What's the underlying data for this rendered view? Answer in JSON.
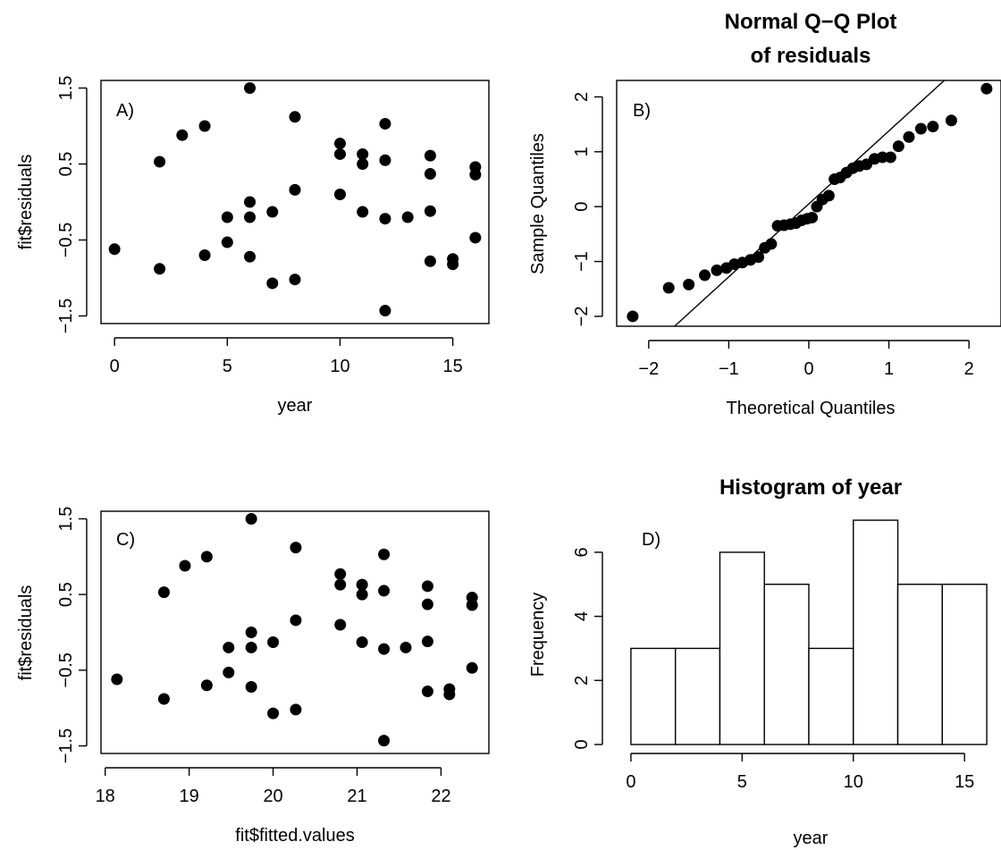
{
  "chart_data": [
    {
      "id": "A",
      "type": "scatter",
      "panel_label": "A)",
      "title": "",
      "xlabel": "year",
      "ylabel": "fit$residuals",
      "xlim": [
        -0.6,
        16.6
      ],
      "ylim": [
        -1.6,
        1.6
      ],
      "xticks": [
        0,
        5,
        10,
        15
      ],
      "yticks": [
        -1.5,
        -0.5,
        0.5,
        1.5
      ],
      "xtick_labels": [
        "0",
        "5",
        "10",
        "15"
      ],
      "ytick_labels": [
        "−1.5",
        "−0.5",
        "0.5",
        "1.5"
      ],
      "points": [
        [
          0,
          -0.62
        ],
        [
          2,
          0.53
        ],
        [
          2,
          -0.88
        ],
        [
          3,
          0.88
        ],
        [
          4,
          1.0
        ],
        [
          4,
          -0.7
        ],
        [
          5,
          -0.2
        ],
        [
          5,
          -0.53
        ],
        [
          6,
          1.5
        ],
        [
          6,
          0.0
        ],
        [
          6,
          -0.2
        ],
        [
          6,
          -0.72
        ],
        [
          7,
          -0.13
        ],
        [
          7,
          -1.07
        ],
        [
          8,
          1.12
        ],
        [
          8,
          0.16
        ],
        [
          8,
          -1.02
        ],
        [
          10,
          0.77
        ],
        [
          10,
          0.63
        ],
        [
          10,
          0.1
        ],
        [
          11,
          0.63
        ],
        [
          11,
          0.5
        ],
        [
          11,
          -0.13
        ],
        [
          12,
          1.03
        ],
        [
          12,
          0.55
        ],
        [
          12,
          -0.22
        ],
        [
          12,
          -1.43
        ],
        [
          13,
          -0.2
        ],
        [
          14,
          0.61
        ],
        [
          14,
          0.37
        ],
        [
          14,
          -0.12
        ],
        [
          14,
          -0.78
        ],
        [
          15,
          -0.75
        ],
        [
          15,
          -0.82
        ],
        [
          16,
          0.46
        ],
        [
          16,
          0.36
        ],
        [
          16,
          -0.47
        ]
      ]
    },
    {
      "id": "B",
      "type": "scatter",
      "panel_label": "B)",
      "title": "Normal Q−Q Plot\nof residuals",
      "xlabel": "Theoretical Quantiles",
      "ylabel": "Sample Quantiles",
      "xlim": [
        -2.4,
        2.4
      ],
      "ylim": [
        -2.18,
        2.3
      ],
      "xticks": [
        -2,
        -1,
        0,
        1,
        2
      ],
      "yticks": [
        -2,
        -1,
        0,
        1,
        2
      ],
      "xtick_labels": [
        "−2",
        "−1",
        "0",
        "1",
        "2"
      ],
      "ytick_labels": [
        "−2",
        "−1",
        "0",
        "1",
        "2"
      ],
      "reference_line": {
        "intercept": 0.05,
        "slope": 1.33
      },
      "points": [
        [
          -2.2,
          -2.0
        ],
        [
          -1.75,
          -1.48
        ],
        [
          -1.5,
          -1.42
        ],
        [
          -1.3,
          -1.25
        ],
        [
          -1.15,
          -1.16
        ],
        [
          -1.03,
          -1.12
        ],
        [
          -0.93,
          -1.05
        ],
        [
          -0.83,
          -1.02
        ],
        [
          -0.73,
          -0.97
        ],
        [
          -0.63,
          -0.92
        ],
        [
          -0.55,
          -0.75
        ],
        [
          -0.47,
          -0.68
        ],
        [
          -0.39,
          -0.35
        ],
        [
          -0.31,
          -0.34
        ],
        [
          -0.23,
          -0.32
        ],
        [
          -0.16,
          -0.3
        ],
        [
          -0.09,
          -0.25
        ],
        [
          -0.02,
          -0.22
        ],
        [
          0.04,
          -0.2
        ],
        [
          0.1,
          0.0
        ],
        [
          0.17,
          0.13
        ],
        [
          0.25,
          0.2
        ],
        [
          0.32,
          0.5
        ],
        [
          0.39,
          0.53
        ],
        [
          0.47,
          0.62
        ],
        [
          0.55,
          0.7
        ],
        [
          0.63,
          0.74
        ],
        [
          0.72,
          0.77
        ],
        [
          0.82,
          0.87
        ],
        [
          0.92,
          0.9
        ],
        [
          1.02,
          0.9
        ],
        [
          1.12,
          1.1
        ],
        [
          1.25,
          1.27
        ],
        [
          1.4,
          1.42
        ],
        [
          1.55,
          1.46
        ],
        [
          1.78,
          1.57
        ],
        [
          2.22,
          2.15
        ]
      ]
    },
    {
      "id": "C",
      "type": "scatter",
      "panel_label": "C)",
      "title": "",
      "xlabel": "fit$fitted.values",
      "ylabel": "fit$residuals",
      "xlim": [
        17.95,
        22.57
      ],
      "ylim": [
        -1.6,
        1.6
      ],
      "xticks": [
        18,
        19,
        20,
        21,
        22
      ],
      "yticks": [
        -1.5,
        -0.5,
        0.5,
        1.5
      ],
      "xtick_labels": [
        "18",
        "19",
        "20",
        "21",
        "22"
      ],
      "ytick_labels": [
        "−1.5",
        "−0.5",
        "0.5",
        "1.5"
      ],
      "points": [
        [
          18.14,
          -0.62
        ],
        [
          18.7,
          0.53
        ],
        [
          18.7,
          -0.88
        ],
        [
          18.95,
          0.88
        ],
        [
          19.21,
          1.0
        ],
        [
          19.21,
          -0.7
        ],
        [
          19.47,
          -0.2
        ],
        [
          19.47,
          -0.53
        ],
        [
          19.74,
          1.5
        ],
        [
          19.74,
          0.0
        ],
        [
          19.74,
          -0.2
        ],
        [
          19.74,
          -0.72
        ],
        [
          20.0,
          -0.13
        ],
        [
          20.0,
          -1.07
        ],
        [
          20.27,
          1.12
        ],
        [
          20.27,
          0.16
        ],
        [
          20.27,
          -1.02
        ],
        [
          20.8,
          0.77
        ],
        [
          20.8,
          0.63
        ],
        [
          20.8,
          0.1
        ],
        [
          21.06,
          0.63
        ],
        [
          21.06,
          0.5
        ],
        [
          21.06,
          -0.13
        ],
        [
          21.32,
          1.03
        ],
        [
          21.32,
          0.55
        ],
        [
          21.32,
          -0.22
        ],
        [
          21.32,
          -1.43
        ],
        [
          21.58,
          -0.2
        ],
        [
          21.84,
          0.61
        ],
        [
          21.84,
          0.37
        ],
        [
          21.84,
          -0.12
        ],
        [
          21.84,
          -0.78
        ],
        [
          22.1,
          -0.75
        ],
        [
          22.1,
          -0.82
        ],
        [
          22.37,
          0.46
        ],
        [
          22.37,
          0.36
        ],
        [
          22.37,
          -0.47
        ]
      ]
    },
    {
      "id": "D",
      "type": "bar",
      "panel_label": "D)",
      "title": "Histogram of year",
      "xlabel": "year",
      "ylabel": "Frequency",
      "xlim": [
        -0.64,
        16.64
      ],
      "ylim": [
        -0.28,
        7.28
      ],
      "xticks": [
        0,
        5,
        10,
        15
      ],
      "yticks": [
        0,
        2,
        4,
        6
      ],
      "xtick_labels": [
        "0",
        "5",
        "10",
        "15"
      ],
      "ytick_labels": [
        "0",
        "2",
        "4",
        "6"
      ],
      "bins": [
        {
          "from": 0,
          "to": 2,
          "count": 3
        },
        {
          "from": 2,
          "to": 4,
          "count": 3
        },
        {
          "from": 4,
          "to": 6,
          "count": 6
        },
        {
          "from": 6,
          "to": 8,
          "count": 5
        },
        {
          "from": 8,
          "to": 10,
          "count": 3
        },
        {
          "from": 10,
          "to": 12,
          "count": 7
        },
        {
          "from": 12,
          "to": 14,
          "count": 5
        },
        {
          "from": 14,
          "to": 16,
          "count": 5
        }
      ]
    }
  ]
}
